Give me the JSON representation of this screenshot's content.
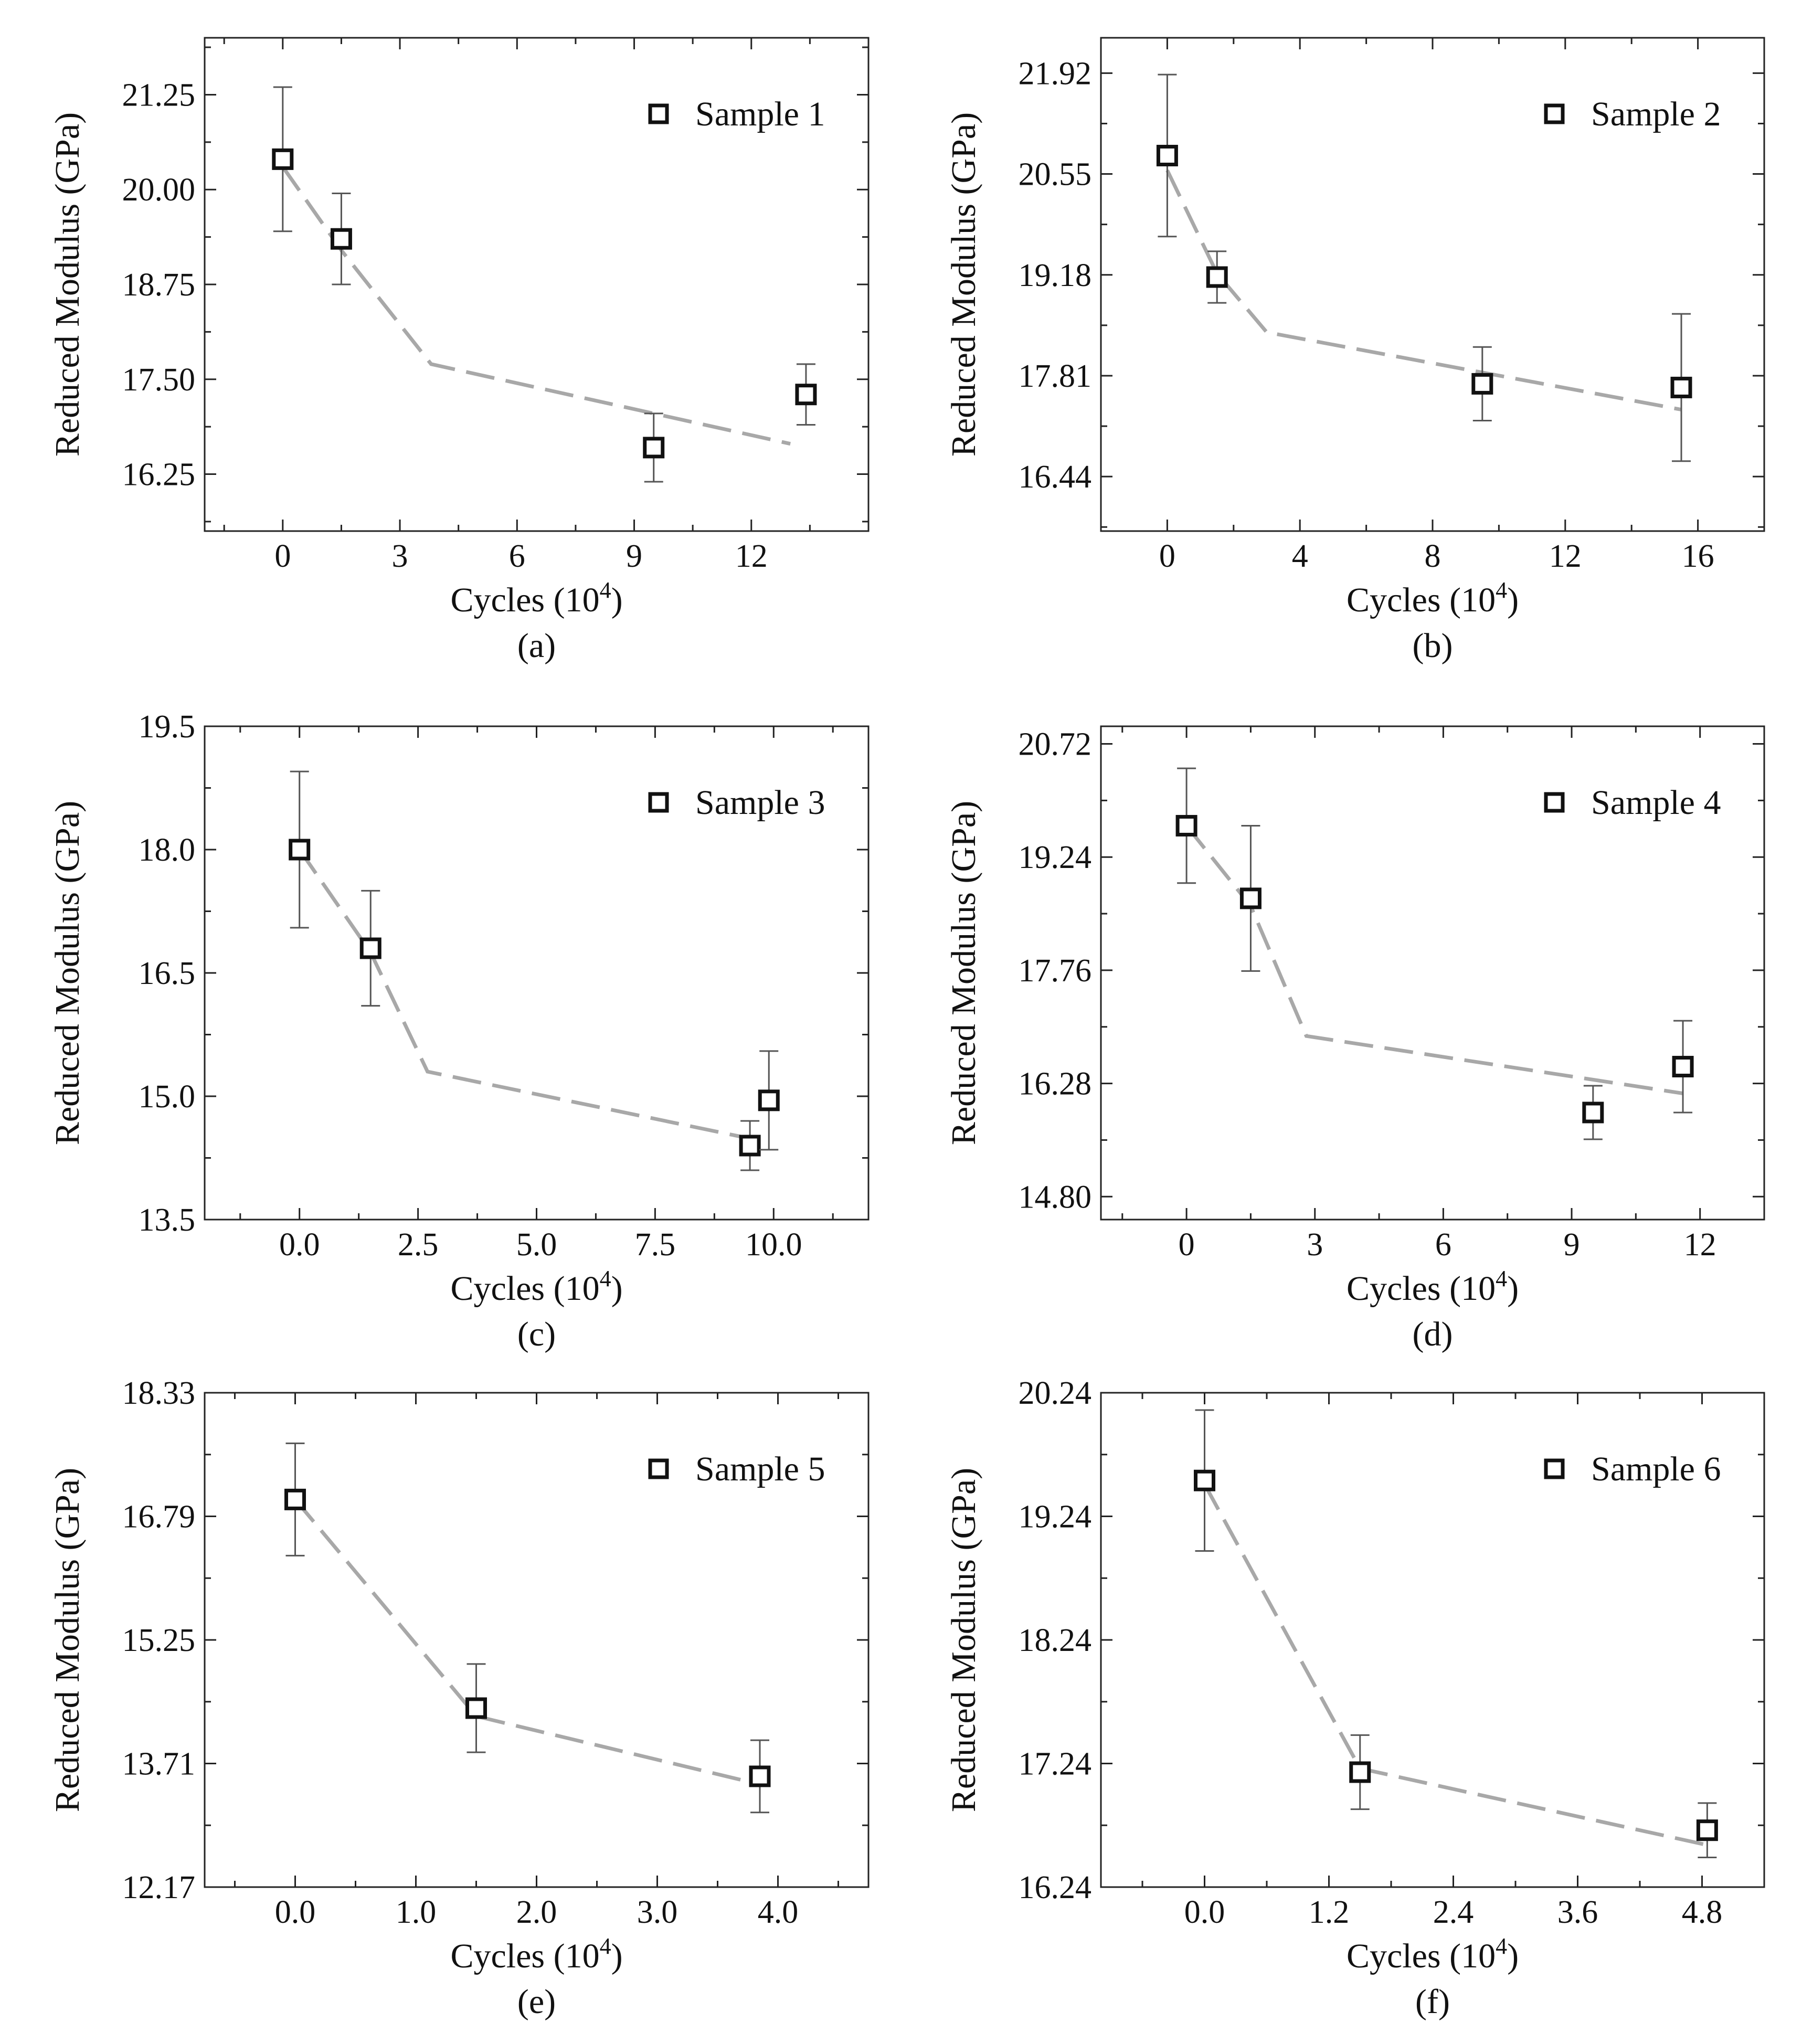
{
  "figure": {
    "colors": {
      "axis": "#222222",
      "marker": "#111111",
      "fit_line": "#a8a8a8",
      "error_bar": "#555555"
    }
  },
  "chart_data": [
    {
      "panel_label": "(a)",
      "type": "scatter",
      "xlabel": "Cycles (10",
      "xlabel_sup": "4",
      "xlabel_close": ")",
      "ylabel": "Reduced Modulus (GPa)",
      "legend": "Sample 1",
      "legend_position": "top-right",
      "xlim": [
        -2,
        15
      ],
      "ylim": [
        15.5,
        22
      ],
      "xticks": [
        "0",
        "3",
        "6",
        "9",
        "12"
      ],
      "xtick_values": [
        0,
        3,
        6,
        9,
        12
      ],
      "yticks": [
        "16.25",
        "17.50",
        "18.75",
        "20.00",
        "21.25"
      ],
      "ytick_values": [
        16.25,
        17.5,
        18.75,
        20.0,
        21.25
      ],
      "x": [
        0,
        1.5,
        9.5,
        13.4
      ],
      "y": [
        20.4,
        19.35,
        16.6,
        17.3
      ],
      "yerr": [
        0.95,
        0.6,
        0.45,
        0.4
      ],
      "fit_line": {
        "x": [
          0,
          1.5,
          3.8,
          13.0
        ],
        "y": [
          20.3,
          19.2,
          17.7,
          16.65
        ]
      }
    },
    {
      "panel_label": "(b)",
      "type": "scatter",
      "xlabel": "Cycles (10",
      "xlabel_sup": "4",
      "xlabel_close": ")",
      "ylabel": "Reduced Modulus (GPa)",
      "legend": "Sample 2",
      "legend_position": "top-right",
      "xlim": [
        -2,
        18
      ],
      "ylim": [
        15.7,
        22.4
      ],
      "xticks": [
        "0",
        "4",
        "8",
        "12",
        "16"
      ],
      "xtick_values": [
        0,
        4,
        8,
        12,
        16
      ],
      "yticks": [
        "16.44",
        "17.81",
        "19.18",
        "20.55",
        "21.92"
      ],
      "ytick_values": [
        16.44,
        17.81,
        19.18,
        20.55,
        21.92
      ],
      "x": [
        0,
        1.5,
        9.5,
        15.5
      ],
      "y": [
        20.8,
        19.15,
        17.7,
        17.65
      ],
      "yerr": [
        1.1,
        0.35,
        0.5,
        1.0
      ],
      "fit_line": {
        "x": [
          0,
          1.5,
          3.0,
          15.5
        ],
        "y": [
          20.6,
          19.2,
          18.4,
          17.35
        ]
      }
    },
    {
      "panel_label": "(c)",
      "type": "scatter",
      "xlabel": "Cycles (10",
      "xlabel_sup": "4",
      "xlabel_close": ")",
      "ylabel": "Reduced Modulus (GPa)",
      "legend": "Sample 3",
      "legend_position": "top-right",
      "xlim": [
        -2,
        12
      ],
      "ylim": [
        13.5,
        19.5
      ],
      "xticks": [
        "0.0",
        "2.5",
        "5.0",
        "7.5",
        "10.0"
      ],
      "xtick_values": [
        0,
        2.5,
        5,
        7.5,
        10
      ],
      "yticks": [
        "13.5",
        "15.0",
        "16.5",
        "18.0",
        "19.5"
      ],
      "ytick_values": [
        13.5,
        15.0,
        16.5,
        18.0,
        19.5
      ],
      "x": [
        0,
        1.5,
        9.5,
        9.9
      ],
      "y": [
        18.0,
        16.8,
        14.4,
        14.95
      ],
      "yerr": [
        0.95,
        0.7,
        0.3,
        0.6
      ],
      "fit_line": {
        "x": [
          0,
          1.5,
          2.7,
          9.8
        ],
        "y": [
          18.0,
          16.75,
          15.3,
          14.45
        ]
      }
    },
    {
      "panel_label": "(d)",
      "type": "scatter",
      "xlabel": "Cycles (10",
      "xlabel_sup": "4",
      "xlabel_close": ")",
      "ylabel": "Reduced Modulus (GPa)",
      "legend": "Sample 4",
      "legend_position": "top-right",
      "xlim": [
        -2,
        13.5
      ],
      "ylim": [
        14.5,
        20.95
      ],
      "xticks": [
        "0",
        "3",
        "6",
        "9",
        "12"
      ],
      "xtick_values": [
        0,
        3,
        6,
        9,
        12
      ],
      "yticks": [
        "14.80",
        "16.28",
        "17.76",
        "19.24",
        "20.72"
      ],
      "ytick_values": [
        14.8,
        16.28,
        17.76,
        19.24,
        20.72
      ],
      "x": [
        0,
        1.5,
        9.5,
        11.6
      ],
      "y": [
        19.65,
        18.7,
        15.9,
        16.5
      ],
      "yerr": [
        0.75,
        0.95,
        0.35,
        0.6
      ],
      "fit_line": {
        "x": [
          0,
          1.5,
          2.8,
          11.6
        ],
        "y": [
          19.65,
          18.6,
          16.9,
          16.15
        ]
      }
    },
    {
      "panel_label": "(e)",
      "type": "scatter",
      "xlabel": "Cycles (10",
      "xlabel_sup": "4",
      "xlabel_close": ")",
      "ylabel": "Reduced Modulus (GPa)",
      "legend": "Sample 5",
      "legend_position": "top-right",
      "xlim": [
        -0.75,
        4.75
      ],
      "ylim": [
        12.17,
        18.33
      ],
      "xticks": [
        "0.0",
        "1.0",
        "2.0",
        "3.0",
        "4.0"
      ],
      "xtick_values": [
        0,
        1,
        2,
        3,
        4
      ],
      "yticks": [
        "12.17",
        "13.71",
        "15.25",
        "16.79",
        "18.33"
      ],
      "ytick_values": [
        12.17,
        13.71,
        15.25,
        16.79,
        18.33
      ],
      "x": [
        0,
        1.5,
        3.85
      ],
      "y": [
        17.0,
        14.4,
        13.55
      ],
      "yerr": [
        0.7,
        0.55,
        0.45
      ],
      "fit_line": {
        "x": [
          0,
          1.5,
          3.85
        ],
        "y": [
          17.0,
          14.3,
          13.45
        ]
      }
    },
    {
      "panel_label": "(f)",
      "type": "scatter",
      "xlabel": "Cycles (10",
      "xlabel_sup": "4",
      "xlabel_close": ")",
      "ylabel": "Reduced Modulus (GPa)",
      "legend": "Sample 6",
      "legend_position": "top-right",
      "xlim": [
        -1,
        5.4
      ],
      "ylim": [
        16.24,
        20.24
      ],
      "xticks": [
        "0.0",
        "1.2",
        "2.4",
        "3.6",
        "4.8"
      ],
      "xtick_values": [
        0,
        1.2,
        2.4,
        3.6,
        4.8
      ],
      "yticks": [
        "16.24",
        "17.24",
        "18.24",
        "19.24",
        "20.24"
      ],
      "ytick_values": [
        16.24,
        17.24,
        18.24,
        19.24,
        20.24
      ],
      "x": [
        0,
        1.5,
        4.85
      ],
      "y": [
        19.53,
        17.17,
        16.7
      ],
      "yerr": [
        0.57,
        0.3,
        0.22
      ],
      "fit_line": {
        "x": [
          0,
          1.5,
          4.85
        ],
        "y": [
          19.5,
          17.2,
          16.58
        ]
      }
    }
  ]
}
